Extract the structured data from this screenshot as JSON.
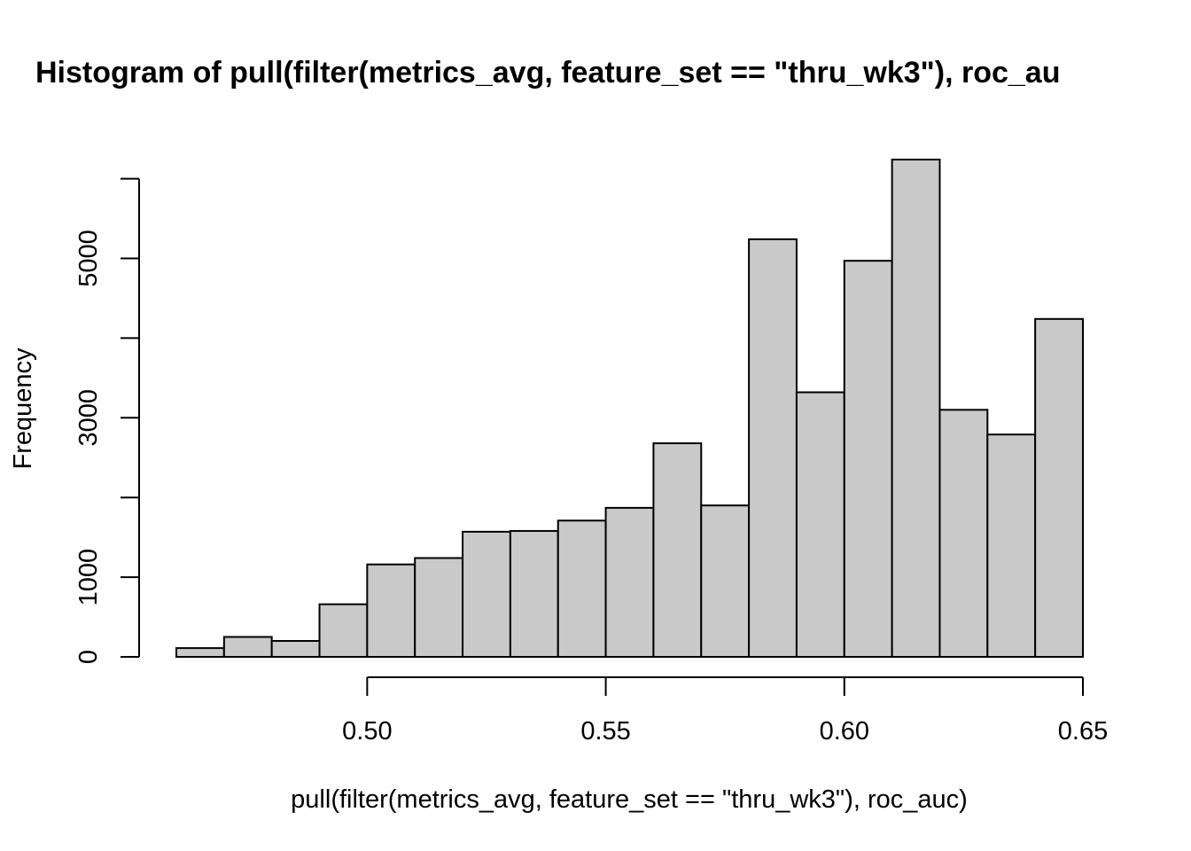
{
  "chart_data": {
    "type": "bar",
    "title": "Histogram of pull(filter(metrics_avg, feature_set == \"thru_wk3\"), roc_au",
    "xlabel": "pull(filter(metrics_avg, feature_set == \"thru_wk3\"), roc_auc)",
    "ylabel": "Frequency",
    "bin_edges": [
      0.46,
      0.47,
      0.48,
      0.49,
      0.5,
      0.51,
      0.52,
      0.53,
      0.54,
      0.55,
      0.56,
      0.57,
      0.58,
      0.59,
      0.6,
      0.61,
      0.62,
      0.63,
      0.64,
      0.65
    ],
    "values": [
      110,
      250,
      200,
      660,
      1160,
      1240,
      1570,
      1580,
      1710,
      1870,
      2680,
      1900,
      5240,
      3320,
      4970,
      6240,
      3100,
      2790,
      4240
    ],
    "xlim": [
      0.46,
      0.65
    ],
    "ylim": [
      0,
      6240
    ],
    "x_ticks": [
      0.5,
      0.55,
      0.6,
      0.65
    ],
    "x_tick_labels": [
      "0.50",
      "0.55",
      "0.60",
      "0.65"
    ],
    "y_ticks": [
      0,
      1000,
      2000,
      3000,
      4000,
      5000,
      6000
    ],
    "y_tick_labels": [
      "0",
      "1000",
      "",
      "3000",
      "",
      "5000",
      ""
    ],
    "grid": false,
    "colors": {
      "bar_fill": "#c9c9c9",
      "bar_stroke": "#000000"
    }
  }
}
